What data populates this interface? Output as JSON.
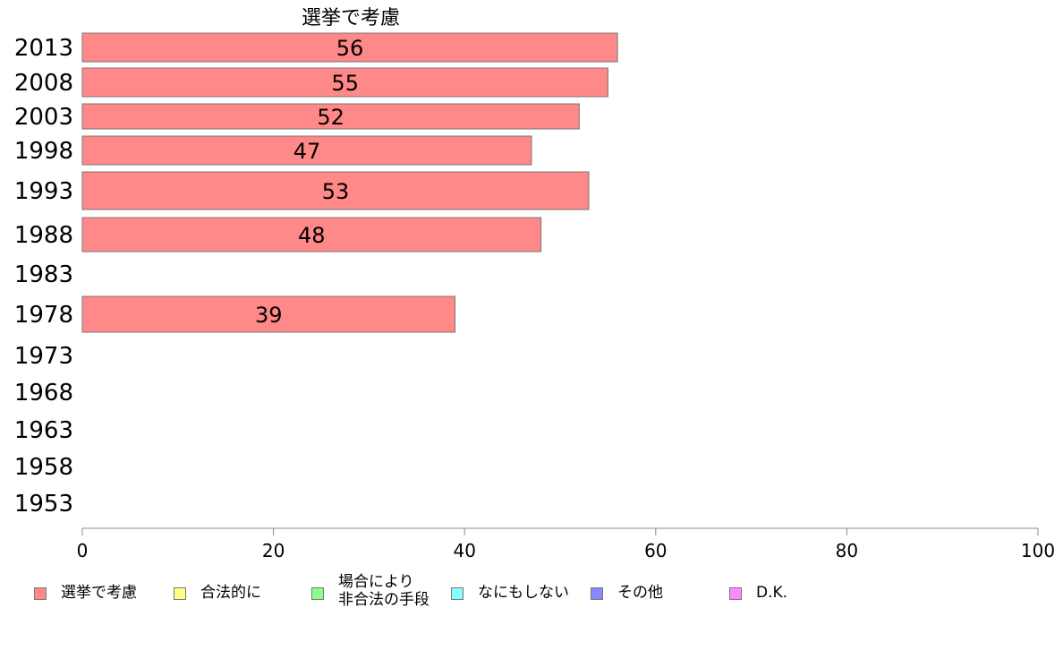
{
  "chart_data": {
    "type": "bar",
    "orientation": "horizontal",
    "title": "選挙で考慮",
    "categories": [
      "2013",
      "2008",
      "2003",
      "1998",
      "1993",
      "1988",
      "1983",
      "1978",
      "1973",
      "1968",
      "1963",
      "1958",
      "1953"
    ],
    "series": [
      {
        "name": "選挙で考慮",
        "color": "#ff8888",
        "values": [
          56,
          55,
          52,
          47,
          53,
          48,
          null,
          39,
          null,
          null,
          null,
          null,
          null
        ]
      }
    ],
    "xlim": [
      0,
      100
    ],
    "xticks": [
      0,
      20,
      40,
      60,
      80,
      100
    ],
    "grid": false,
    "legend_position": "bottom"
  },
  "legend": {
    "items": [
      {
        "label": "選挙で考慮",
        "color": "#ff8888"
      },
      {
        "label": "合法的に",
        "color": "#ffff88"
      },
      {
        "label": "場合により\n非合法の手段",
        "color": "#88ff88"
      },
      {
        "label": "なにもしない",
        "color": "#88ffff"
      },
      {
        "label": "その他",
        "color": "#8888ff"
      },
      {
        "label": "D.K.",
        "color": "#ff88ff"
      }
    ]
  }
}
